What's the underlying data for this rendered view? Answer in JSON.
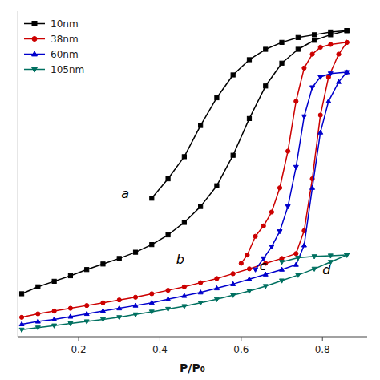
{
  "chart_data": {
    "type": "line",
    "x_label": "P/P₀",
    "xlim": [
      0.05,
      0.91
    ],
    "ylim": [
      0,
      470
    ],
    "xticks": [
      0.2,
      0.4,
      0.6,
      0.8
    ],
    "tick_labels": "x",
    "legend": "upper left",
    "series": [
      {
        "name": "10nm",
        "color": "#000000",
        "marker": "square",
        "x": [
          0.06,
          0.1,
          0.14,
          0.18,
          0.22,
          0.26,
          0.3,
          0.34,
          0.38,
          0.42,
          0.46,
          0.5,
          0.54,
          0.58,
          0.62,
          0.66,
          0.7,
          0.74,
          0.78,
          0.82,
          0.86
        ],
        "values": [
          62,
          72,
          80,
          88,
          97,
          105,
          113,
          122,
          133,
          147,
          165,
          188,
          218,
          262,
          315,
          362,
          395,
          415,
          428,
          436,
          442
        ]
      },
      {
        "name": "10nm",
        "color": "#000000",
        "marker": "square",
        "x": [
          0.86,
          0.82,
          0.78,
          0.74,
          0.7,
          0.66,
          0.62,
          0.58,
          0.54,
          0.5,
          0.46,
          0.42,
          0.38
        ],
        "values": [
          442,
          440,
          436,
          432,
          425,
          415,
          400,
          378,
          345,
          305,
          260,
          228,
          200
        ]
      },
      {
        "name": "38nm",
        "color": "#cc0000",
        "marker": "circle",
        "x": [
          0.06,
          0.1,
          0.14,
          0.18,
          0.22,
          0.26,
          0.3,
          0.34,
          0.38,
          0.42,
          0.46,
          0.5,
          0.54,
          0.58,
          0.62,
          0.66,
          0.7,
          0.735,
          0.755,
          0.775,
          0.795,
          0.815,
          0.84,
          0.86
        ],
        "values": [
          28,
          33,
          37,
          41,
          45,
          49,
          53,
          57,
          62,
          67,
          72,
          78,
          84,
          91,
          98,
          106,
          113,
          120,
          153,
          228,
          320,
          375,
          408,
          425
        ]
      },
      {
        "name": "38nm",
        "color": "#cc0000",
        "marker": "circle",
        "x": [
          0.86,
          0.82,
          0.795,
          0.775,
          0.755,
          0.735,
          0.715,
          0.695,
          0.675,
          0.655,
          0.635,
          0.615,
          0.6
        ],
        "values": [
          425,
          422,
          418,
          408,
          388,
          340,
          268,
          215,
          180,
          160,
          145,
          118,
          106
        ]
      },
      {
        "name": "60nm",
        "color": "#0000cc",
        "marker": "triangle-up",
        "x": [
          0.06,
          0.1,
          0.14,
          0.18,
          0.22,
          0.26,
          0.3,
          0.34,
          0.38,
          0.42,
          0.46,
          0.5,
          0.54,
          0.58,
          0.62,
          0.66,
          0.7,
          0.735,
          0.755,
          0.775,
          0.795,
          0.815,
          0.84,
          0.86
        ],
        "values": [
          18,
          22,
          25,
          29,
          33,
          37,
          41,
          45,
          49,
          54,
          59,
          64,
          70,
          76,
          83,
          90,
          97,
          104,
          132,
          215,
          295,
          340,
          368,
          382
        ]
      },
      {
        "name": "60nm",
        "color": "#0000cc",
        "marker": "triangle-down",
        "x": [
          0.86,
          0.82,
          0.795,
          0.775,
          0.755,
          0.735,
          0.715,
          0.695,
          0.675,
          0.655,
          0.635
        ],
        "values": [
          382,
          380,
          375,
          360,
          318,
          245,
          188,
          152,
          130,
          113,
          97
        ]
      },
      {
        "name": "105nm",
        "color": "#007060",
        "marker": "triangle-down",
        "x": [
          0.06,
          0.1,
          0.14,
          0.18,
          0.22,
          0.26,
          0.3,
          0.34,
          0.38,
          0.42,
          0.46,
          0.5,
          0.54,
          0.58,
          0.62,
          0.66,
          0.7,
          0.74,
          0.78,
          0.82,
          0.86
        ],
        "values": [
          10,
          13,
          16,
          19,
          22,
          25,
          28,
          32,
          36,
          40,
          44,
          49,
          54,
          60,
          66,
          73,
          81,
          89,
          98,
          108,
          118
        ]
      },
      {
        "name": "105nm",
        "color": "#007060",
        "marker": "triangle-down",
        "x": [
          0.86,
          0.82,
          0.78,
          0.74,
          0.7
        ],
        "values": [
          118,
          117,
          116,
          114,
          108
        ]
      }
    ],
    "annotations": [
      {
        "text": "a",
        "x": 0.305,
        "y": 200
      },
      {
        "text": "b",
        "x": 0.44,
        "y": 105
      },
      {
        "text": "c",
        "x": 0.645,
        "y": 96
      },
      {
        "text": "d",
        "x": 0.8,
        "y": 90
      }
    ]
  }
}
